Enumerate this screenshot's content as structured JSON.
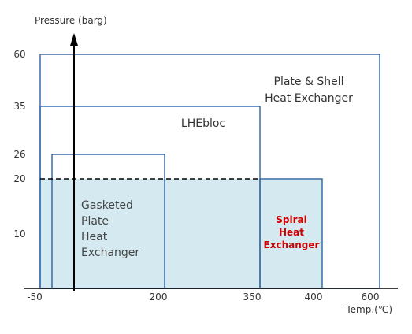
{
  "chart_data": {
    "type": "area",
    "xlabel": "Temp.(℃)",
    "ylabel": "Pressure (barg)",
    "x_ticks": [
      "-50",
      "200",
      "350",
      "400",
      "600"
    ],
    "y_ticks": [
      "60",
      "35",
      "26",
      "20",
      "10"
    ],
    "regions": [
      {
        "label": "Plate & Shell Heat Exchanger",
        "lines": [
          "Plate & Shell",
          "Heat Exchanger"
        ],
        "x_range": [
          -50,
          600
        ],
        "p_max": 60,
        "label_color": "#333333"
      },
      {
        "label": "LHEbloc",
        "lines": [
          "LHEbloc"
        ],
        "x_range": [
          -50,
          350
        ],
        "p_max": 35,
        "label_color": "#333333"
      },
      {
        "label": "Gasketed Plate Heat Exchanger",
        "lines": [
          "Gasketed",
          "Plate",
          "Heat",
          "Exchanger"
        ],
        "x_range": [
          -40,
          200
        ],
        "p_max": 26,
        "label_color": "#444444"
      },
      {
        "label": "Spiral Heat Exchanger",
        "lines": [
          "Spiral",
          "Heat",
          "Exchanger"
        ],
        "x_range": [
          350,
          400
        ],
        "p_max": 20,
        "label_color": "#cc0000"
      }
    ],
    "reference_line": {
      "p": 20,
      "style": "dashed",
      "x_range": [
        -50,
        350
      ]
    },
    "shaded_fill": {
      "p_max": 20,
      "x_range": [
        -50,
        400
      ],
      "color": "#d4eaf0"
    },
    "grid": false
  },
  "colors": {
    "outline": "#3a6aa8",
    "fill": "#d4eaf0",
    "axis": "#000000",
    "text": "#333333",
    "accent_red": "#cc0000"
  }
}
